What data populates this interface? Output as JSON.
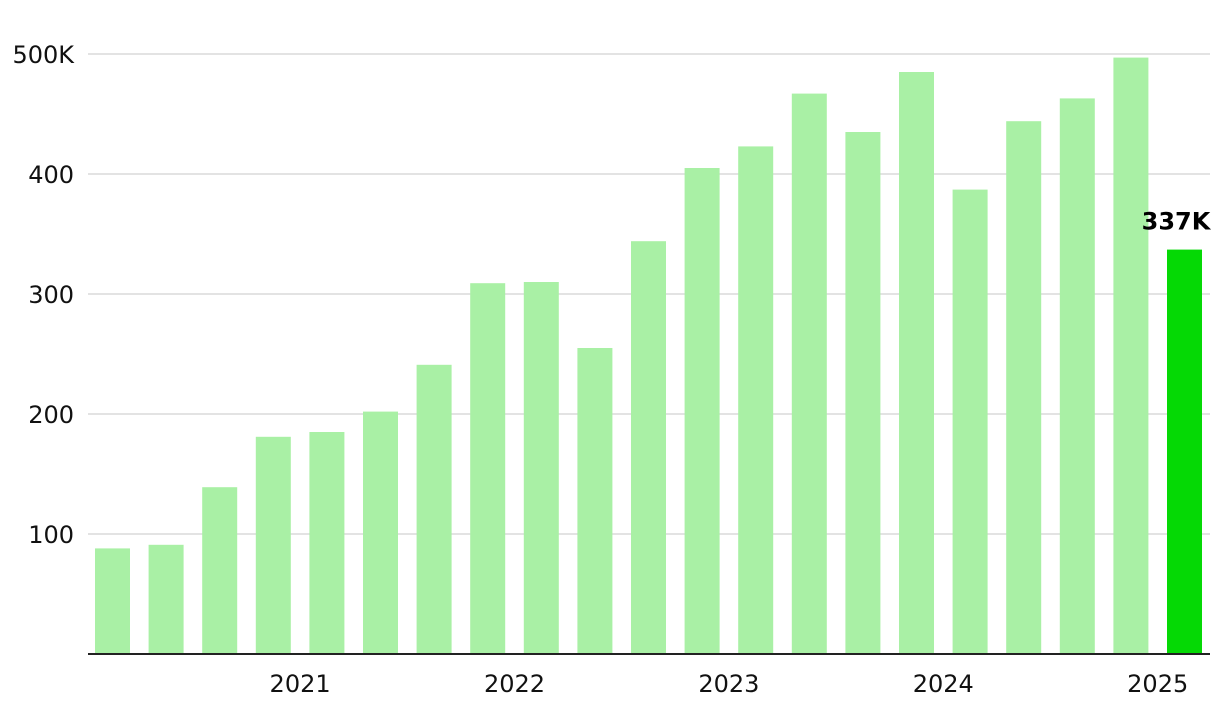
{
  "chart_data": {
    "type": "bar",
    "title": "",
    "xlabel": "",
    "ylabel": "",
    "ylim": [
      0,
      500
    ],
    "grid": true,
    "y_ticks": [
      {
        "value": 100,
        "label": "100"
      },
      {
        "value": 200,
        "label": "200"
      },
      {
        "value": 300,
        "label": "300"
      },
      {
        "value": 400,
        "label": "400"
      },
      {
        "value": 500,
        "label": "500K"
      }
    ],
    "x_ticks": [
      {
        "after_bar_index": 3,
        "label": "2021"
      },
      {
        "after_bar_index": 7,
        "label": "2022"
      },
      {
        "after_bar_index": 11,
        "label": "2023"
      },
      {
        "after_bar_index": 15,
        "label": "2024"
      },
      {
        "after_bar_index": 19,
        "label": "2025"
      }
    ],
    "values": [
      88,
      91,
      139,
      181,
      185,
      202,
      241,
      309,
      310,
      255,
      344,
      405,
      423,
      467,
      435,
      485,
      387,
      444,
      463,
      497,
      337
    ],
    "highlight_index": 20,
    "highlight_label": "337K",
    "colors": {
      "bar": "#a9f0a5",
      "highlight": "#05d905",
      "grid": "#e3e3e3",
      "axis": "#222222",
      "text": "#111111"
    }
  }
}
